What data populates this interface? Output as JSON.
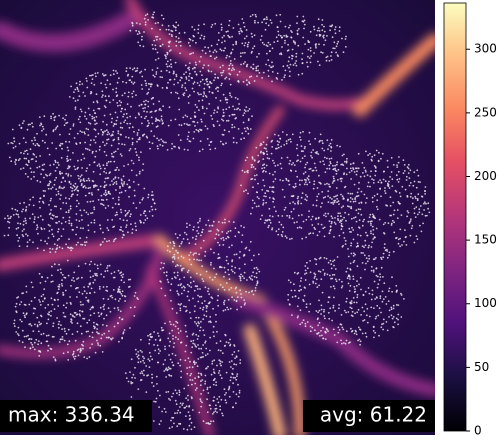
{
  "chart_data": {
    "type": "heatmap",
    "colormap": "magma",
    "colorbar": {
      "ylim": [
        0,
        336.34
      ],
      "yticks": [
        0,
        50,
        100,
        150,
        200,
        250,
        300
      ]
    },
    "annotations": {
      "max": "max: 336.34",
      "avg": "avg: 61.22"
    }
  }
}
